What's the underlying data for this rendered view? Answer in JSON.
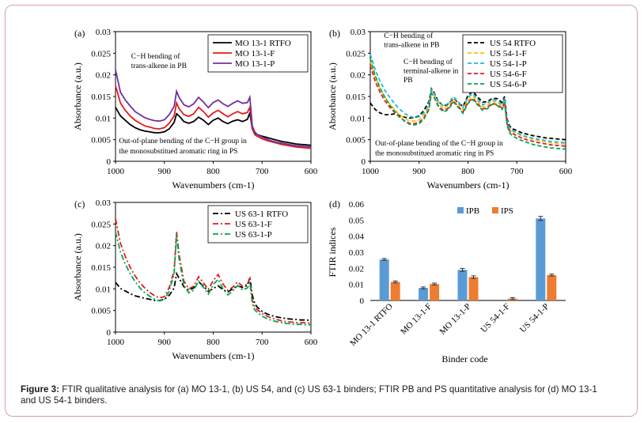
{
  "caption": {
    "label": "Figure 3:",
    "text": "FTIR qualitative analysis for (a) MO 13-1, (b) US 54, and (c) US 63-1 binders; FTIR PB and PS quantitative analysis for (d) MO 13-1 and US 54-1 binders."
  },
  "chart_data": [
    {
      "id": "a",
      "type": "line",
      "panel_label": "(a)",
      "xlabel": "Wavenumbers (cm-1)",
      "ylabel": "Absorbance (a.u.)",
      "xlim": [
        1000,
        600
      ],
      "ylim": [
        0,
        0.03
      ],
      "xticks": [
        "1000",
        "900",
        "800",
        "700",
        "600"
      ],
      "yticks": [
        "0",
        "0.005",
        "0.01",
        "0.015",
        "0.02",
        "0.025",
        "0.03"
      ],
      "legend_position": "top-right",
      "x": [
        1000,
        990,
        980,
        970,
        960,
        950,
        940,
        930,
        920,
        910,
        900,
        890,
        880,
        875,
        870,
        860,
        850,
        840,
        830,
        820,
        810,
        800,
        790,
        780,
        770,
        760,
        750,
        740,
        730,
        725,
        720,
        715,
        710,
        700,
        690,
        680,
        670,
        660,
        650,
        640,
        630,
        620,
        610,
        600
      ],
      "series": [
        {
          "name": "MO 13-1 RTFO",
          "color": "#000000",
          "dash": "solid",
          "values": [
            0.0125,
            0.0105,
            0.0095,
            0.0085,
            0.0078,
            0.0073,
            0.007,
            0.0068,
            0.0066,
            0.0066,
            0.0068,
            0.0075,
            0.009,
            0.011,
            0.0105,
            0.0092,
            0.0088,
            0.0092,
            0.0102,
            0.0095,
            0.0085,
            0.0095,
            0.01,
            0.0092,
            0.0087,
            0.0093,
            0.0096,
            0.0092,
            0.0097,
            0.0112,
            0.0075,
            0.0065,
            0.0062,
            0.0058,
            0.0055,
            0.0052,
            0.0049,
            0.0046,
            0.0044,
            0.0042,
            0.004,
            0.0039,
            0.0038,
            0.0037
          ]
        },
        {
          "name": "MO 13-1-F",
          "color": "#e41a1c",
          "dash": "solid",
          "values": [
            0.0175,
            0.0135,
            0.0118,
            0.0105,
            0.0095,
            0.0088,
            0.0082,
            0.0079,
            0.0076,
            0.0075,
            0.0078,
            0.0088,
            0.0105,
            0.0135,
            0.0122,
            0.0108,
            0.0104,
            0.011,
            0.0125,
            0.0115,
            0.0102,
            0.0112,
            0.0118,
            0.011,
            0.0103,
            0.011,
            0.0115,
            0.011,
            0.0113,
            0.0125,
            0.0075,
            0.0062,
            0.0058,
            0.0052,
            0.0048,
            0.0045,
            0.0042,
            0.0039,
            0.0037,
            0.0035,
            0.0033,
            0.0032,
            0.0031,
            0.003
          ]
        },
        {
          "name": "MO 13-1-P",
          "color": "#7030a0",
          "dash": "solid",
          "values": [
            0.0212,
            0.016,
            0.0142,
            0.0128,
            0.0115,
            0.0108,
            0.0101,
            0.0097,
            0.0094,
            0.0093,
            0.0096,
            0.0108,
            0.0127,
            0.0162,
            0.0148,
            0.0131,
            0.0126,
            0.0133,
            0.0148,
            0.0137,
            0.0124,
            0.0136,
            0.0142,
            0.0133,
            0.0127,
            0.0134,
            0.014,
            0.0134,
            0.0136,
            0.0148,
            0.0082,
            0.0068,
            0.0062,
            0.0056,
            0.0051,
            0.0047,
            0.0044,
            0.0042,
            0.004,
            0.0038,
            0.0036,
            0.0035,
            0.0034,
            0.0033
          ]
        }
      ],
      "annotations": [
        {
          "text": "C−H bending of",
          "tx": 968,
          "ty": 0.0238
        },
        {
          "text": "trans-alkene in PB",
          "tx": 968,
          "ty": 0.0216
        },
        {
          "text": "Out-of-plane bending of the C−H group in",
          "tx": 993,
          "ty": 0.0042
        },
        {
          "text": "the monosubstitued aromatic ring in PS",
          "tx": 993,
          "ty": 0.0018
        }
      ]
    },
    {
      "id": "b",
      "type": "line",
      "panel_label": "(b)",
      "xlabel": "Wavenumbers (cm-1)",
      "ylabel": "Absorbance (a.u.)",
      "xlim": [
        1000,
        600
      ],
      "ylim": [
        0,
        0.03
      ],
      "xticks": [
        "1000",
        "900",
        "800",
        "700",
        "600"
      ],
      "yticks": [
        "0",
        "0.005",
        "0.01",
        "0.015",
        "0.02",
        "0.025",
        "0.03"
      ],
      "legend_position": "top-right",
      "x": [
        1000,
        990,
        980,
        970,
        960,
        950,
        940,
        930,
        920,
        910,
        900,
        890,
        880,
        875,
        870,
        860,
        850,
        840,
        830,
        820,
        810,
        800,
        790,
        780,
        770,
        760,
        750,
        740,
        730,
        725,
        720,
        715,
        710,
        700,
        690,
        680,
        670,
        660,
        650,
        640,
        630,
        620,
        610,
        600
      ],
      "series": [
        {
          "name": "US 54 RTFO",
          "color": "#000000",
          "dash": "dashed",
          "values": [
            0.0135,
            0.012,
            0.0112,
            0.0108,
            0.0108,
            0.011,
            0.0106,
            0.0102,
            0.01,
            0.0101,
            0.0105,
            0.0118,
            0.0138,
            0.0168,
            0.016,
            0.0138,
            0.0128,
            0.0132,
            0.0145,
            0.0135,
            0.0127,
            0.0152,
            0.0162,
            0.0148,
            0.0137,
            0.0138,
            0.0146,
            0.0145,
            0.0136,
            0.015,
            0.0098,
            0.0082,
            0.0076,
            0.0071,
            0.0066,
            0.0063,
            0.006,
            0.0058,
            0.0056,
            0.0054,
            0.0053,
            0.0052,
            0.0051,
            0.005
          ]
        },
        {
          "name": "US 54-1-F",
          "color": "#ffc000",
          "dash": "dashed",
          "values": [
            0.0232,
            0.0195,
            0.0168,
            0.0148,
            0.0132,
            0.012,
            0.0108,
            0.0099,
            0.0094,
            0.0093,
            0.0096,
            0.0108,
            0.0128,
            0.0163,
            0.0155,
            0.0132,
            0.0122,
            0.0128,
            0.0144,
            0.0132,
            0.0119,
            0.0142,
            0.015,
            0.0138,
            0.0126,
            0.013,
            0.0139,
            0.0136,
            0.0128,
            0.0142,
            0.0092,
            0.0076,
            0.007,
            0.0064,
            0.0059,
            0.0055,
            0.0052,
            0.0049,
            0.0047,
            0.0045,
            0.0043,
            0.0042,
            0.0041,
            0.004
          ]
        },
        {
          "name": "US 54-1-P",
          "color": "#1fb8e0",
          "dash": "dashed",
          "values": [
            0.0248,
            0.0212,
            0.0186,
            0.0164,
            0.0148,
            0.0133,
            0.0121,
            0.0111,
            0.0104,
            0.0101,
            0.0103,
            0.0113,
            0.0132,
            0.0166,
            0.0158,
            0.0137,
            0.0128,
            0.0134,
            0.015,
            0.0138,
            0.0125,
            0.0148,
            0.0156,
            0.0143,
            0.0131,
            0.0135,
            0.0143,
            0.014,
            0.0132,
            0.0146,
            0.0094,
            0.0078,
            0.0072,
            0.0066,
            0.0061,
            0.0057,
            0.0054,
            0.0052,
            0.005,
            0.0048,
            0.0046,
            0.0045,
            0.0044,
            0.0043
          ]
        },
        {
          "name": "US 54-6-F",
          "color": "#e41a1c",
          "dash": "dashed",
          "values": [
            0.0222,
            0.0185,
            0.016,
            0.014,
            0.0125,
            0.0113,
            0.0102,
            0.0094,
            0.0088,
            0.0087,
            0.009,
            0.0101,
            0.0121,
            0.0158,
            0.015,
            0.0127,
            0.0117,
            0.0123,
            0.0139,
            0.0127,
            0.0114,
            0.0137,
            0.0145,
            0.0133,
            0.0121,
            0.0125,
            0.0134,
            0.0131,
            0.0123,
            0.0137,
            0.0087,
            0.0071,
            0.0065,
            0.0059,
            0.0054,
            0.005,
            0.0047,
            0.0044,
            0.0042,
            0.004,
            0.0038,
            0.0037,
            0.0036,
            0.0035
          ]
        },
        {
          "name": "US 54-6-P",
          "color": "#00a651",
          "dash": "dashed",
          "values": [
            0.0238,
            0.0198,
            0.017,
            0.0148,
            0.013,
            0.0116,
            0.0103,
            0.0093,
            0.0086,
            0.0084,
            0.0087,
            0.0098,
            0.0119,
            0.0157,
            0.0149,
            0.0125,
            0.0114,
            0.012,
            0.0137,
            0.0125,
            0.0111,
            0.0134,
            0.0143,
            0.013,
            0.0118,
            0.0122,
            0.0132,
            0.0129,
            0.012,
            0.0135,
            0.0083,
            0.0066,
            0.006,
            0.0053,
            0.0048,
            0.0044,
            0.004,
            0.0037,
            0.0035,
            0.0033,
            0.0031,
            0.003,
            0.0029,
            0.0028
          ]
        }
      ],
      "annotations": [
        {
          "text": "C−H bending of",
          "tx": 972,
          "ty": 0.0285
        },
        {
          "text": "trans-alkene in PB",
          "tx": 972,
          "ty": 0.0264
        },
        {
          "text": "C−H bending of",
          "tx": 932,
          "ty": 0.0225
        },
        {
          "text": "terminal-alkene in",
          "tx": 932,
          "ty": 0.0204
        },
        {
          "text": "PB",
          "tx": 932,
          "ty": 0.0183
        },
        {
          "text": "Out-of-plane bending of the C−H group in",
          "tx": 990,
          "ty": 0.0037
        },
        {
          "text": "the monosubstitued aromatic ring in PS",
          "tx": 990,
          "ty": 0.0014
        }
      ]
    },
    {
      "id": "c",
      "type": "line",
      "panel_label": "(c)",
      "xlabel": "Wavenumbers (cm-1)",
      "ylabel": "Absorbance (a.u.)",
      "xlim": [
        1000,
        600
      ],
      "ylim": [
        0,
        0.03
      ],
      "xticks": [
        "1000",
        "900",
        "800",
        "700",
        "600"
      ],
      "yticks": [
        "0",
        "0.005",
        "0.01",
        "0.015",
        "0.02",
        "0.025",
        "0.03"
      ],
      "legend_position": "top-right",
      "x": [
        1000,
        990,
        980,
        970,
        960,
        950,
        940,
        930,
        920,
        910,
        900,
        890,
        880,
        875,
        870,
        860,
        850,
        840,
        830,
        820,
        810,
        800,
        790,
        780,
        770,
        760,
        750,
        740,
        730,
        725,
        720,
        715,
        710,
        700,
        690,
        680,
        670,
        660,
        650,
        640,
        630,
        620,
        610,
        600
      ],
      "series": [
        {
          "name": "US 63-1 RTFO",
          "color": "#000000",
          "dash": "dashdot",
          "values": [
            0.0115,
            0.0101,
            0.0095,
            0.0089,
            0.0084,
            0.0081,
            0.0078,
            0.0076,
            0.0073,
            0.0073,
            0.0076,
            0.0085,
            0.0102,
            0.0135,
            0.0125,
            0.0105,
            0.0097,
            0.0102,
            0.0116,
            0.0107,
            0.0094,
            0.0101,
            0.0107,
            0.0098,
            0.0093,
            0.01,
            0.0107,
            0.0103,
            0.0108,
            0.0127,
            0.0085,
            0.0066,
            0.0058,
            0.0048,
            0.0042,
            0.0038,
            0.0035,
            0.0033,
            0.0031,
            0.003,
            0.0029,
            0.0028,
            0.0028,
            0.0027
          ]
        },
        {
          "name": "US 63-1-F",
          "color": "#e41a1c",
          "dash": "dashdot",
          "values": [
            0.0262,
            0.0206,
            0.0175,
            0.015,
            0.013,
            0.0114,
            0.0102,
            0.0092,
            0.0084,
            0.0079,
            0.0082,
            0.0103,
            0.0142,
            0.0232,
            0.018,
            0.0118,
            0.01,
            0.0106,
            0.0128,
            0.0114,
            0.0099,
            0.0119,
            0.0133,
            0.0111,
            0.0096,
            0.0104,
            0.0116,
            0.0106,
            0.0111,
            0.0124,
            0.0073,
            0.0058,
            0.0052,
            0.0043,
            0.0037,
            0.0032,
            0.0029,
            0.0026,
            0.0024,
            0.0023,
            0.0022,
            0.0022,
            0.0021,
            0.0021
          ]
        },
        {
          "name": "US 63-1-P",
          "color": "#00a651",
          "dash": "dashdot",
          "values": [
            0.0232,
            0.0185,
            0.0158,
            0.0135,
            0.0117,
            0.0102,
            0.0091,
            0.0083,
            0.0076,
            0.0072,
            0.0075,
            0.0095,
            0.0135,
            0.0225,
            0.017,
            0.0108,
            0.0091,
            0.0097,
            0.0118,
            0.0103,
            0.0088,
            0.011,
            0.0122,
            0.01,
            0.0086,
            0.0095,
            0.0108,
            0.0097,
            0.0102,
            0.0115,
            0.0066,
            0.0051,
            0.0046,
            0.0037,
            0.0031,
            0.0027,
            0.0024,
            0.0022,
            0.002,
            0.0019,
            0.0018,
            0.0018,
            0.0017,
            0.0017
          ]
        }
      ],
      "annotations": []
    },
    {
      "id": "d",
      "type": "bar",
      "panel_label": "(d)",
      "xlabel": "Binder code",
      "ylabel": "FTIR indices",
      "ylim": [
        0,
        0.06
      ],
      "yticks": [
        "0",
        "0.01",
        "0.02",
        "0.03",
        "0.04",
        "0.05",
        "0.06"
      ],
      "legend_position": "top-left",
      "categories": [
        "MO 13-1 RTFO",
        "MO 13-1-F",
        "MO 13-1-P",
        "US 54-1-F",
        "US 54-1-P"
      ],
      "series": [
        {
          "name": "IPB",
          "color": "#5b9bd5",
          "values": [
            0.0255,
            0.0078,
            0.019,
            0.0,
            0.051
          ],
          "errors": [
            0.0006,
            0.0006,
            0.0009,
            0.0,
            0.0013
          ]
        },
        {
          "name": "IPS",
          "color": "#ed7d31",
          "values": [
            0.0115,
            0.0102,
            0.0145,
            0.0012,
            0.0158
          ],
          "errors": [
            0.0006,
            0.0006,
            0.0008,
            0.0006,
            0.0006
          ]
        }
      ]
    }
  ]
}
